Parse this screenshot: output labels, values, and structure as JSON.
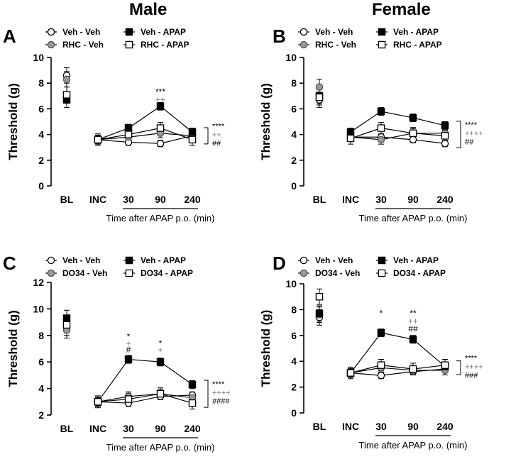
{
  "column_titles": [
    "Male",
    "Female"
  ],
  "colors": {
    "veh_veh": "#ffffff",
    "treat_veh": "#999999",
    "veh_apap": "#000000",
    "treat_apap": "#ffffff",
    "stat_black": "#000000",
    "stat_gray": "#777777"
  },
  "chart_data": [
    {
      "panel": "A",
      "type": "line",
      "title": "Male",
      "ylabel": "Threshold (g)",
      "xlabel": "Time after APAP p.o. (min)",
      "ylim": [
        0,
        10
      ],
      "yticks": [
        0,
        2,
        4,
        6,
        8,
        10
      ],
      "categories": [
        "BL",
        "INC",
        "30",
        "90",
        "240"
      ],
      "legend": [
        "Veh - Veh",
        "Veh - APAP",
        "RHC - Veh",
        "RHC - APAP"
      ],
      "series": [
        {
          "name": "Veh - Veh",
          "values": [
            8.6,
            3.6,
            3.4,
            3.3,
            3.9
          ]
        },
        {
          "name": "RHC - Veh",
          "values": [
            8.3,
            3.6,
            3.8,
            4.1,
            3.9
          ]
        },
        {
          "name": "Veh - APAP",
          "values": [
            6.7,
            3.6,
            4.5,
            6.2,
            4.2
          ]
        },
        {
          "name": "RHC - APAP",
          "values": [
            7.1,
            3.6,
            4.0,
            4.5,
            3.6
          ]
        }
      ],
      "annotations": [
        {
          "cat": "90",
          "y": 7.1,
          "text": "***",
          "color": "black"
        },
        {
          "cat": "90",
          "y": 6.5,
          "text": "++",
          "color": "gray"
        }
      ],
      "bracket_labels": [
        {
          "text": "****",
          "color": "black"
        },
        {
          "text": "++",
          "color": "gray"
        },
        {
          "text": "##",
          "color": "black"
        }
      ]
    },
    {
      "panel": "B",
      "type": "line",
      "title": "Female",
      "ylabel": "Threshold (g)",
      "xlabel": "Time after APAP p.o. (min)",
      "ylim": [
        0,
        10
      ],
      "yticks": [
        0,
        2,
        4,
        6,
        8,
        10
      ],
      "categories": [
        "BL",
        "INC",
        "30",
        "90",
        "240"
      ],
      "legend": [
        "Veh - Veh",
        "Veh - APAP",
        "RHC - Veh",
        "RHC - APAP"
      ],
      "series": [
        {
          "name": "Veh - Veh",
          "values": [
            6.7,
            3.8,
            3.8,
            3.6,
            3.3
          ]
        },
        {
          "name": "RHC - Veh",
          "values": [
            7.7,
            3.8,
            3.6,
            4.1,
            4.1
          ]
        },
        {
          "name": "Veh - APAP",
          "values": [
            7.0,
            4.2,
            5.8,
            5.3,
            4.7
          ]
        },
        {
          "name": "RHC - APAP",
          "values": [
            6.9,
            3.7,
            4.5,
            4.1,
            3.9
          ]
        }
      ],
      "annotations": [],
      "bracket_labels": [
        {
          "text": "****",
          "color": "black"
        },
        {
          "text": "++++",
          "color": "gray"
        },
        {
          "text": "##",
          "color": "black"
        }
      ]
    },
    {
      "panel": "C",
      "type": "line",
      "title": "Male",
      "ylabel": "Threshold (g)",
      "xlabel": "Time after APAP p.o. (min)",
      "ylim": [
        2,
        12
      ],
      "yticks": [
        2,
        4,
        6,
        8,
        10,
        12
      ],
      "categories": [
        "BL",
        "INC",
        "30",
        "90",
        "240"
      ],
      "legend": [
        "Veh - Veh",
        "Veh - APAP",
        "DO34 - Veh",
        "DO34 - APAP"
      ],
      "series": [
        {
          "name": "Veh - Veh",
          "values": [
            8.6,
            3.0,
            2.9,
            3.4,
            3.5
          ]
        },
        {
          "name": "DO34 - Veh",
          "values": [
            8.4,
            3.0,
            3.4,
            3.6,
            3.3
          ]
        },
        {
          "name": "Veh - APAP",
          "values": [
            9.3,
            3.0,
            6.2,
            6.0,
            4.3
          ]
        },
        {
          "name": "DO34 - APAP",
          "values": [
            8.8,
            3.0,
            3.2,
            3.6,
            2.9
          ]
        }
      ],
      "annotations": [
        {
          "cat": "30",
          "y": 7.7,
          "text": "*",
          "color": "black"
        },
        {
          "cat": "30",
          "y": 7.2,
          "text": "+",
          "color": "gray"
        },
        {
          "cat": "30",
          "y": 6.7,
          "text": "#",
          "color": "black"
        },
        {
          "cat": "90",
          "y": 7.2,
          "text": "*",
          "color": "black"
        },
        {
          "cat": "90",
          "y": 6.7,
          "text": "+",
          "color": "gray"
        }
      ],
      "bracket_labels": [
        {
          "text": "****",
          "color": "black"
        },
        {
          "text": "++++",
          "color": "gray"
        },
        {
          "text": "####",
          "color": "black"
        }
      ]
    },
    {
      "panel": "D",
      "type": "line",
      "title": "Female",
      "ylabel": "Threshold (g)",
      "xlabel": "Time after APAP p.o. (min)",
      "ylim": [
        0,
        10
      ],
      "yticks": [
        0,
        2,
        4,
        6,
        8,
        10
      ],
      "categories": [
        "BL",
        "INC",
        "30",
        "90",
        "240"
      ],
      "legend": [
        "Veh - Veh",
        "Veh - APAP",
        "DO34 - Veh",
        "DO34 - APAP"
      ],
      "series": [
        {
          "name": "Veh - Veh",
          "values": [
            7.4,
            3.1,
            2.9,
            3.2,
            3.4
          ]
        },
        {
          "name": "DO34 - Veh",
          "values": [
            7.6,
            3.1,
            3.5,
            3.3,
            3.3
          ]
        },
        {
          "name": "Veh - APAP",
          "values": [
            7.7,
            3.1,
            6.2,
            5.7,
            3.6
          ]
        },
        {
          "name": "DO34 - APAP",
          "values": [
            9.0,
            3.1,
            3.7,
            3.4,
            3.7
          ]
        }
      ],
      "annotations": [
        {
          "cat": "30",
          "y": 7.5,
          "text": "*",
          "color": "black"
        },
        {
          "cat": "90",
          "y": 7.5,
          "text": "**",
          "color": "black"
        },
        {
          "cat": "90",
          "y": 6.9,
          "text": "++",
          "color": "gray"
        },
        {
          "cat": "90",
          "y": 6.3,
          "text": "##",
          "color": "black"
        }
      ],
      "bracket_labels": [
        {
          "text": "****",
          "color": "black"
        },
        {
          "text": "++++",
          "color": "gray"
        },
        {
          "text": "###",
          "color": "black"
        }
      ]
    }
  ]
}
